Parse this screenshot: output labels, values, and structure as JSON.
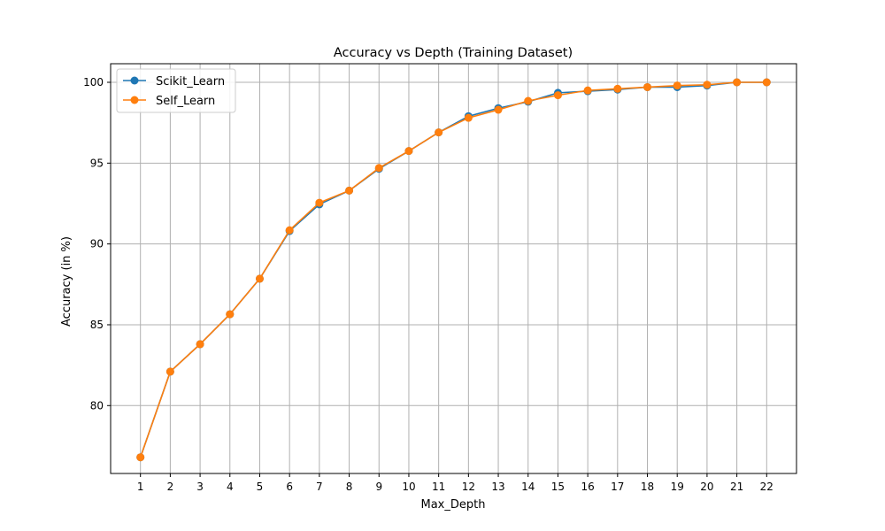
{
  "chart_data": {
    "type": "line",
    "title": "Accuracy vs Depth (Training Dataset)",
    "xlabel": "Max_Depth",
    "ylabel": "Accuracy (in %)",
    "x": [
      1,
      2,
      3,
      4,
      5,
      6,
      7,
      8,
      9,
      10,
      11,
      12,
      13,
      14,
      15,
      16,
      17,
      18,
      19,
      20,
      21,
      22
    ],
    "xlim": [
      0.0,
      23.0
    ],
    "ylim": [
      75.8,
      101.15
    ],
    "yticks": [
      80,
      85,
      90,
      95,
      100
    ],
    "grid": true,
    "legend_position": "top-left",
    "series": [
      {
        "name": "Scikit_Learn",
        "color": "#1f77b4",
        "values": [
          76.8,
          82.1,
          83.8,
          85.65,
          87.85,
          90.8,
          92.45,
          93.3,
          94.65,
          95.75,
          96.9,
          97.9,
          98.4,
          98.8,
          99.35,
          99.45,
          99.55,
          99.7,
          99.7,
          99.8,
          100.0,
          100.0
        ]
      },
      {
        "name": "Self_Learn",
        "color": "#ff7f0e",
        "values": [
          76.8,
          82.1,
          83.8,
          85.65,
          87.85,
          90.85,
          92.55,
          93.3,
          94.7,
          95.75,
          96.9,
          97.8,
          98.3,
          98.85,
          99.2,
          99.5,
          99.6,
          99.7,
          99.8,
          99.85,
          100.0,
          100.0
        ]
      }
    ]
  }
}
